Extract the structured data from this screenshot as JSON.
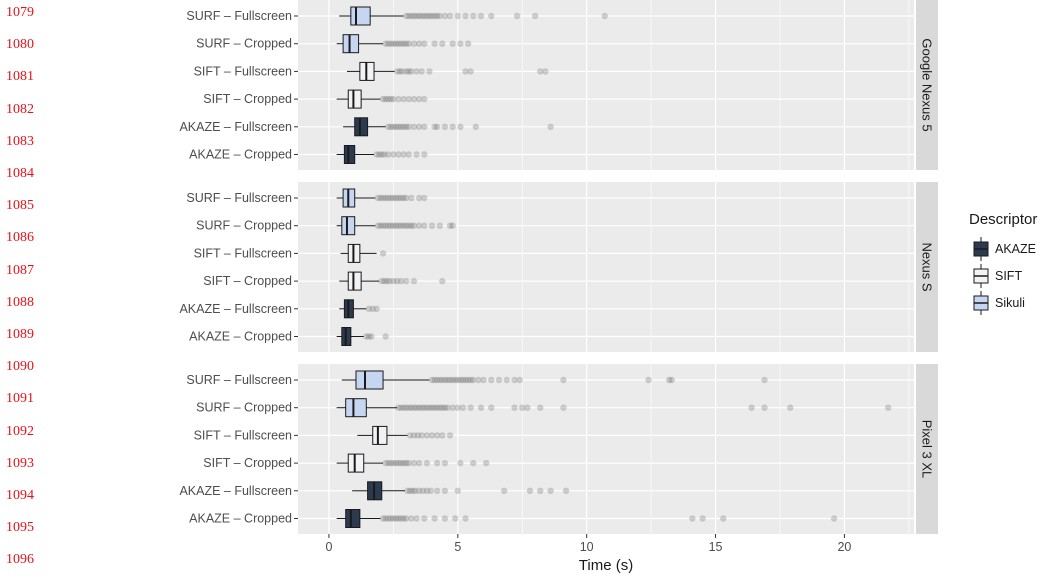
{
  "line_numbers": [
    "1079",
    "1080",
    "1081",
    "1082",
    "1083",
    "1084",
    "1085",
    "1086",
    "1087",
    "1088",
    "1089",
    "1090",
    "1091",
    "1092",
    "1093",
    "1094",
    "1095",
    "1096"
  ],
  "colors": {
    "panel_bg": "#ebebeb",
    "strip_bg": "#d9d9d9",
    "grid": "#ffffff",
    "AKAZE": "#2b3a4f",
    "SIFT": "#f2f2f5",
    "Sikuli": "#c6d6f2",
    "outline": "#1a1a1a",
    "outlier": "#555555",
    "line_number": "#e8101a"
  },
  "chart_data": {
    "type": "boxplot",
    "orientation": "horizontal",
    "xlabel": "Time (s)",
    "xlim": [
      -1.2,
      22.7
    ],
    "x_ticks": [
      0,
      5,
      10,
      15,
      20
    ],
    "grid": true,
    "legend": {
      "title": "Descriptor",
      "position": "right",
      "entries": [
        "AKAZE",
        "SIFT",
        "Sikuli"
      ]
    },
    "panels": [
      {
        "device": "Google Nexus 5",
        "rows": [
          {
            "label": "SURF – Fullscreen",
            "descriptor": "Sikuli",
            "min": 0.4,
            "q1": 0.85,
            "median": 1.05,
            "q3": 1.6,
            "max": 2.9,
            "outliers": [
              3.0,
              3.1,
              3.2,
              3.3,
              3.4,
              3.5,
              3.6,
              3.7,
              3.8,
              3.9,
              4.0,
              4.1,
              4.2,
              4.3,
              4.5,
              4.7,
              5.0,
              5.3,
              5.6,
              5.9,
              6.3,
              7.3,
              8.0,
              10.7
            ]
          },
          {
            "label": "SURF – Cropped",
            "descriptor": "Sikuli",
            "min": 0.3,
            "q1": 0.55,
            "median": 0.8,
            "q3": 1.15,
            "max": 2.1,
            "outliers": [
              2.2,
              2.3,
              2.4,
              2.5,
              2.6,
              2.7,
              2.8,
              2.9,
              3.0,
              3.1,
              3.3,
              3.5,
              3.7,
              4.1,
              4.4,
              4.8,
              5.1,
              5.4
            ]
          },
          {
            "label": "SIFT – Fullscreen",
            "descriptor": "SIFT",
            "min": 0.7,
            "q1": 1.2,
            "median": 1.45,
            "q3": 1.75,
            "max": 2.55,
            "outliers": [
              2.65,
              2.75,
              2.85,
              3.0,
              3.1,
              3.2,
              3.4,
              3.6,
              3.9,
              5.3,
              5.5,
              8.2,
              8.4
            ]
          },
          {
            "label": "SIFT – Cropped",
            "descriptor": "SIFT",
            "min": 0.3,
            "q1": 0.75,
            "median": 0.95,
            "q3": 1.25,
            "max": 2.0,
            "outliers": [
              2.1,
              2.2,
              2.3,
              2.4,
              2.5,
              2.7,
              2.9,
              3.1,
              3.3,
              3.5,
              3.7
            ]
          },
          {
            "label": "AKAZE – Fullscreen",
            "descriptor": "AKAZE",
            "min": 0.55,
            "q1": 1.0,
            "median": 1.2,
            "q3": 1.5,
            "max": 2.2,
            "outliers": [
              2.3,
              2.4,
              2.5,
              2.6,
              2.7,
              2.8,
              2.9,
              3.0,
              3.1,
              3.3,
              3.5,
              3.7,
              4.1,
              4.2,
              4.5,
              4.8,
              5.1,
              5.7,
              8.6
            ]
          },
          {
            "label": "AKAZE – Cropped",
            "descriptor": "AKAZE",
            "min": 0.3,
            "q1": 0.6,
            "median": 0.75,
            "q3": 1.0,
            "max": 1.75,
            "outliers": [
              1.85,
              1.95,
              2.05,
              2.15,
              2.3,
              2.5,
              2.7,
              2.9,
              3.1,
              3.4,
              3.7
            ]
          }
        ]
      },
      {
        "device": "Nexus S",
        "rows": [
          {
            "label": "SURF – Fullscreen",
            "descriptor": "Sikuli",
            "min": 0.3,
            "q1": 0.55,
            "median": 0.75,
            "q3": 1.0,
            "max": 1.8,
            "outliers": [
              1.9,
              2.0,
              2.1,
              2.2,
              2.3,
              2.4,
              2.5,
              2.6,
              2.7,
              2.8,
              2.9,
              3.0,
              3.2,
              3.5,
              3.7
            ]
          },
          {
            "label": "SURF – Cropped",
            "descriptor": "Sikuli",
            "min": 0.3,
            "q1": 0.5,
            "median": 0.7,
            "q3": 1.0,
            "max": 1.8,
            "outliers": [
              1.9,
              2.0,
              2.1,
              2.2,
              2.3,
              2.4,
              2.5,
              2.6,
              2.7,
              2.8,
              2.9,
              3.0,
              3.1,
              3.2,
              3.3,
              3.5,
              3.7,
              4.0,
              4.3,
              4.7,
              4.8
            ]
          },
          {
            "label": "SIFT – Fullscreen",
            "descriptor": "SIFT",
            "min": 0.45,
            "q1": 0.75,
            "median": 0.95,
            "q3": 1.2,
            "max": 1.85,
            "outliers": [
              2.1
            ]
          },
          {
            "label": "SIFT – Cropped",
            "descriptor": "SIFT",
            "min": 0.4,
            "q1": 0.75,
            "median": 0.95,
            "q3": 1.25,
            "max": 1.95,
            "outliers": [
              2.05,
              2.15,
              2.25,
              2.35,
              2.5,
              2.65,
              2.8,
              3.0,
              3.3,
              4.4
            ]
          },
          {
            "label": "AKAZE – Fullscreen",
            "descriptor": "AKAZE",
            "min": 0.4,
            "q1": 0.6,
            "median": 0.75,
            "q3": 0.95,
            "max": 1.45,
            "outliers": [
              1.55,
              1.7,
              1.85
            ]
          },
          {
            "label": "AKAZE – Cropped",
            "descriptor": "AKAZE",
            "min": 0.3,
            "q1": 0.5,
            "median": 0.65,
            "q3": 0.85,
            "max": 1.35,
            "outliers": [
              1.45,
              1.55,
              1.65,
              2.2
            ]
          }
        ]
      },
      {
        "device": "Pixel 3 XL",
        "rows": [
          {
            "label": "SURF – Fullscreen",
            "descriptor": "Sikuli",
            "min": 0.5,
            "q1": 1.05,
            "median": 1.4,
            "q3": 2.1,
            "max": 3.9,
            "outliers": [
              4.0,
              4.1,
              4.2,
              4.3,
              4.4,
              4.5,
              4.6,
              4.7,
              4.8,
              4.9,
              5.0,
              5.1,
              5.2,
              5.3,
              5.4,
              5.5,
              5.6,
              5.8,
              6.0,
              6.3,
              6.6,
              6.9,
              7.2,
              7.4,
              9.1,
              12.4,
              13.2,
              13.3,
              16.9
            ]
          },
          {
            "label": "SURF – Cropped",
            "descriptor": "Sikuli",
            "min": 0.3,
            "q1": 0.65,
            "median": 0.95,
            "q3": 1.45,
            "max": 2.65,
            "outliers": [
              2.7,
              2.8,
              2.9,
              3.0,
              3.1,
              3.2,
              3.3,
              3.4,
              3.5,
              3.6,
              3.7,
              3.8,
              3.9,
              4.0,
              4.1,
              4.2,
              4.3,
              4.4,
              4.5,
              4.6,
              4.8,
              5.0,
              5.2,
              5.5,
              5.9,
              6.3,
              7.2,
              7.5,
              7.7,
              8.2,
              9.1,
              16.4,
              16.9,
              17.9,
              21.7
            ]
          },
          {
            "label": "SIFT – Fullscreen",
            "descriptor": "SIFT",
            "min": 1.1,
            "q1": 1.7,
            "median": 1.9,
            "q3": 2.25,
            "max": 3.05,
            "outliers": [
              3.15,
              3.3,
              3.45,
              3.6,
              3.8,
              4.0,
              4.2,
              4.4,
              4.7
            ]
          },
          {
            "label": "SIFT – Cropped",
            "descriptor": "SIFT",
            "min": 0.3,
            "q1": 0.75,
            "median": 1.0,
            "q3": 1.35,
            "max": 2.1,
            "outliers": [
              2.2,
              2.3,
              2.4,
              2.5,
              2.6,
              2.7,
              2.8,
              2.9,
              3.0,
              3.1,
              3.3,
              3.5,
              3.8,
              4.2,
              4.5,
              5.1,
              5.6,
              6.1
            ]
          },
          {
            "label": "AKAZE – Fullscreen",
            "descriptor": "AKAZE",
            "min": 0.9,
            "q1": 1.5,
            "median": 1.75,
            "q3": 2.05,
            "max": 2.95,
            "outliers": [
              3.05,
              3.15,
              3.25,
              3.35,
              3.5,
              3.65,
              3.8,
              3.95,
              4.2,
              4.5,
              5.0,
              6.8,
              7.8,
              8.2,
              8.6,
              9.2
            ]
          },
          {
            "label": "AKAZE – Cropped",
            "descriptor": "AKAZE",
            "min": 0.3,
            "q1": 0.65,
            "median": 0.85,
            "q3": 1.2,
            "max": 2.0,
            "outliers": [
              2.1,
              2.2,
              2.3,
              2.4,
              2.5,
              2.6,
              2.7,
              2.8,
              2.9,
              3.0,
              3.2,
              3.4,
              3.7,
              4.1,
              4.5,
              4.9,
              5.3,
              14.1,
              14.5,
              15.3,
              19.6
            ]
          }
        ]
      }
    ]
  }
}
